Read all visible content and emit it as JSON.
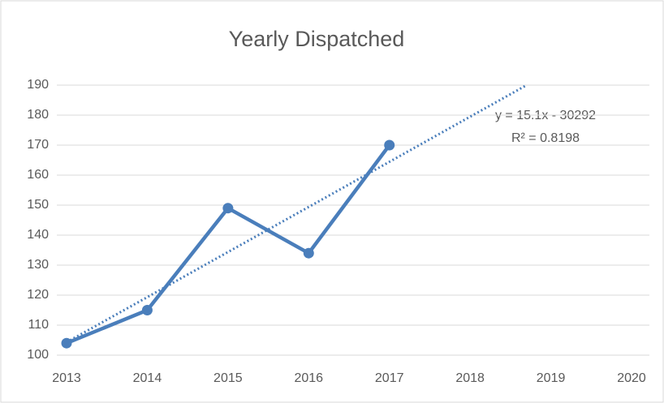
{
  "chart_data": {
    "type": "line",
    "title": "Yearly Dispatched",
    "x": [
      2013,
      2014,
      2015,
      2016,
      2017
    ],
    "series": [
      {
        "color": "#4a7ebb",
        "values": [
          104,
          115,
          149,
          134,
          170
        ]
      }
    ],
    "trendline": {
      "x": [
        2013,
        2018.7
      ],
      "values": [
        104.3,
        190
      ],
      "color": "#4a7ebb"
    },
    "annotations": [
      "y = 15.1x - 30292",
      "R² = 0.8198"
    ],
    "xlim": [
      2013,
      2020
    ],
    "xticks": [
      2013,
      2014,
      2015,
      2016,
      2017,
      2018,
      2019,
      2020
    ],
    "ylim": [
      100,
      190
    ],
    "yticks": [
      100,
      110,
      120,
      130,
      140,
      150,
      160,
      170,
      180,
      190
    ],
    "grid": true
  }
}
